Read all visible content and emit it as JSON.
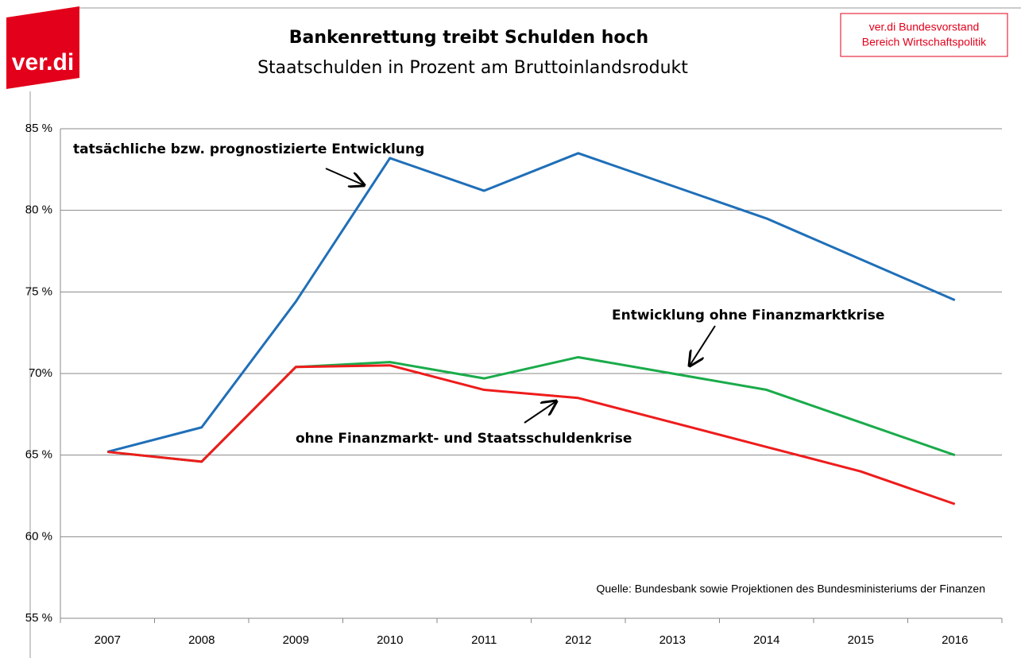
{
  "logo": "ver.di",
  "source_box": [
    "ver.di Bundesvorstand",
    "Bereich Wirtschaftspolitik"
  ],
  "chart_data": {
    "type": "line",
    "title": "Bankenrettung treibt Schulden hoch",
    "subtitle": "Staatschulden in Prozent am Bruttoinlandsrodukt",
    "source": "Quelle: Bundesbank sowie Projektionen des Bundesministeriums der Finanzen",
    "categories": [
      "2007",
      "2008",
      "2009",
      "2010",
      "2011",
      "2012",
      "2013",
      "2014",
      "2015",
      "2016"
    ],
    "ylim": [
      55,
      85
    ],
    "yticks": [
      {
        "value": 55,
        "label": "55 %"
      },
      {
        "value": 60,
        "label": "60 %"
      },
      {
        "value": 65,
        "label": "65 %"
      },
      {
        "value": 70,
        "label": "70%"
      },
      {
        "value": 75,
        "label": "75 %"
      },
      {
        "value": 80,
        "label": "80 %"
      },
      {
        "value": 85,
        "label": "85 %"
      }
    ],
    "grid": true,
    "series": [
      {
        "name": "tatsächliche bzw. prognostizierte Entwicklung",
        "color": "#1f6fb8",
        "values": [
          65.2,
          66.7,
          74.4,
          83.2,
          81.2,
          83.5,
          81.5,
          79.5,
          77.0,
          74.5
        ]
      },
      {
        "name": "Entwicklung ohne Finanzmarktkrise",
        "color": "#1aab4a",
        "values": [
          65.2,
          64.6,
          70.4,
          70.7,
          69.7,
          71.0,
          70.0,
          69.0,
          67.0,
          65.0
        ]
      },
      {
        "name": "ohne Finanzmarkt- und Staatsschuldenkrise",
        "color": "#ee1c1c",
        "values": [
          65.2,
          64.6,
          70.4,
          70.5,
          69.0,
          68.5,
          67.0,
          65.5,
          64.0,
          62.0
        ]
      }
    ]
  }
}
